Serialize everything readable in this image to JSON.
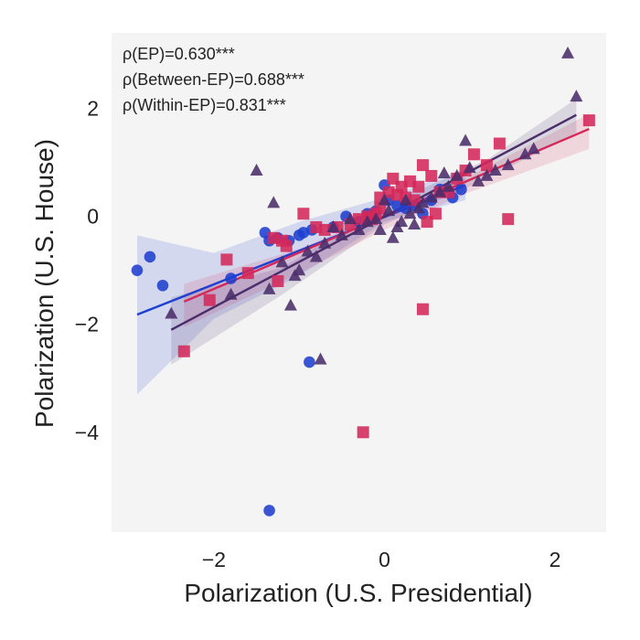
{
  "chart_data": {
    "type": "scatter",
    "xlabel": "Polarization (U.S. Presidential)",
    "ylabel": "Polarization (U.S. House)",
    "xlim": [
      -3.2,
      2.6
    ],
    "ylim": [
      -5.85,
      3.4
    ],
    "xticks": [
      -2,
      0,
      2
    ],
    "yticks": [
      -4,
      -2,
      0,
      2
    ],
    "xtick_labels": [
      "−2",
      "0",
      "2"
    ],
    "ytick_labels": [
      "−4",
      "−2",
      "0",
      "2"
    ],
    "grid": false,
    "background": "#f4f4f4",
    "annotations": [
      "ρ(EP)=0.630***",
      "ρ(Between-EP)=0.688***",
      "ρ(Within-EP)=0.831***"
    ],
    "series": [
      {
        "marker": "circle",
        "color": "#1f3fcf",
        "points": [
          [
            -2.9,
            -1.0
          ],
          [
            -2.75,
            -0.75
          ],
          [
            -2.6,
            -1.28
          ],
          [
            -1.4,
            -0.3
          ],
          [
            -1.35,
            -0.45
          ],
          [
            -1.25,
            -0.4
          ],
          [
            -1.12,
            -0.45
          ],
          [
            -1.0,
            -0.35
          ],
          [
            -0.95,
            -0.3
          ],
          [
            -0.85,
            -0.25
          ],
          [
            -0.6,
            -0.2
          ],
          [
            -0.45,
            0.0
          ],
          [
            -0.3,
            -0.1
          ],
          [
            -0.2,
            0.05
          ],
          [
            -0.1,
            0.1
          ],
          [
            0.0,
            0.58
          ],
          [
            0.05,
            0.3
          ],
          [
            0.15,
            0.2
          ],
          [
            0.25,
            0.15
          ],
          [
            0.35,
            0.2
          ],
          [
            0.45,
            0.05
          ],
          [
            0.55,
            0.3
          ],
          [
            0.65,
            0.5
          ],
          [
            0.8,
            0.35
          ],
          [
            0.9,
            0.5
          ],
          [
            -1.8,
            -1.15
          ],
          [
            -0.88,
            -2.7
          ],
          [
            -1.35,
            -5.45
          ]
        ],
        "fit": [
          [
            -2.9,
            -1.82
          ],
          [
            0.95,
            0.58
          ]
        ],
        "band": {
          "x": [
            -2.9,
            -2.0,
            -1.0,
            0.0,
            0.95
          ],
          "upper": [
            -0.35,
            -0.68,
            -0.1,
            0.35,
            0.88
          ],
          "lower": [
            -3.3,
            -1.9,
            -1.1,
            -0.1,
            0.3
          ]
        }
      },
      {
        "marker": "square",
        "color": "#d4285a",
        "points": [
          [
            2.4,
            1.78
          ],
          [
            1.45,
            -0.05
          ],
          [
            1.35,
            1.35
          ],
          [
            1.2,
            0.95
          ],
          [
            1.05,
            1.15
          ],
          [
            0.95,
            0.85
          ],
          [
            0.85,
            0.7
          ],
          [
            0.75,
            0.45
          ],
          [
            0.65,
            0.45
          ],
          [
            0.6,
            0.05
          ],
          [
            0.55,
            0.75
          ],
          [
            0.45,
            0.95
          ],
          [
            0.4,
            0.55
          ],
          [
            0.3,
            0.65
          ],
          [
            0.25,
            0.35
          ],
          [
            0.2,
            0.55
          ],
          [
            0.15,
            0.4
          ],
          [
            0.1,
            0.7
          ],
          [
            0.05,
            0.45
          ],
          [
            -0.05,
            0.35
          ],
          [
            -0.1,
            0.05
          ],
          [
            -0.15,
            -0.05
          ],
          [
            -0.2,
            0.0
          ],
          [
            -0.3,
            -0.05
          ],
          [
            -0.4,
            -0.15
          ],
          [
            -0.55,
            -0.2
          ],
          [
            -0.7,
            -0.25
          ],
          [
            -0.8,
            -0.2
          ],
          [
            -0.95,
            0.05
          ],
          [
            -1.2,
            -0.45
          ],
          [
            -1.15,
            -0.55
          ],
          [
            -1.3,
            -0.4
          ],
          [
            -1.25,
            -1.2
          ],
          [
            -1.6,
            -1.05
          ],
          [
            -1.85,
            -0.8
          ],
          [
            -2.05,
            -1.55
          ],
          [
            -2.35,
            -2.5
          ],
          [
            0.45,
            -1.72
          ],
          [
            0.5,
            -0.1
          ],
          [
            -0.25,
            -4.0
          ],
          [
            0.35,
            0.3
          ],
          [
            -0.05,
            0.15
          ]
        ],
        "fit": [
          [
            -2.35,
            -1.58
          ],
          [
            2.4,
            1.62
          ]
        ],
        "band": {
          "x": [
            -2.35,
            -1.0,
            0.0,
            1.0,
            2.4
          ],
          "upper": [
            -1.25,
            -0.6,
            0.05,
            0.75,
            1.9
          ],
          "lower": [
            -2.05,
            -1.05,
            -0.25,
            0.45,
            1.25
          ]
        }
      },
      {
        "marker": "triangle",
        "color": "#4a2d6a",
        "points": [
          [
            2.15,
            3.02
          ],
          [
            2.25,
            2.22
          ],
          [
            1.75,
            1.25
          ],
          [
            1.65,
            1.15
          ],
          [
            1.45,
            0.95
          ],
          [
            1.3,
            0.85
          ],
          [
            1.2,
            0.75
          ],
          [
            1.1,
            0.65
          ],
          [
            1.0,
            0.9
          ],
          [
            0.95,
            1.4
          ],
          [
            0.85,
            0.75
          ],
          [
            0.75,
            0.55
          ],
          [
            0.7,
            0.8
          ],
          [
            0.65,
            0.45
          ],
          [
            0.55,
            0.35
          ],
          [
            0.45,
            0.25
          ],
          [
            0.4,
            0.15
          ],
          [
            0.35,
            -0.15
          ],
          [
            0.3,
            0.05
          ],
          [
            0.25,
            0.3
          ],
          [
            0.2,
            -0.1
          ],
          [
            0.15,
            -0.2
          ],
          [
            0.1,
            -0.4
          ],
          [
            0.05,
            0.1
          ],
          [
            0.0,
            0.3
          ],
          [
            -0.05,
            -0.25
          ],
          [
            -0.1,
            -0.05
          ],
          [
            -0.2,
            -0.1
          ],
          [
            -0.3,
            -0.25
          ],
          [
            -0.4,
            -0.05
          ],
          [
            -0.5,
            -0.35
          ],
          [
            -0.6,
            -0.2
          ],
          [
            -0.7,
            -0.5
          ],
          [
            -0.8,
            -0.75
          ],
          [
            -0.9,
            -0.65
          ],
          [
            -1.0,
            -1.0
          ],
          [
            -1.05,
            -1.1
          ],
          [
            -1.1,
            -1.65
          ],
          [
            -1.2,
            -0.85
          ],
          [
            -1.35,
            -1.35
          ],
          [
            -1.3,
            0.25
          ],
          [
            -1.5,
            0.85
          ],
          [
            -1.8,
            -1.45
          ],
          [
            -2.5,
            -1.8
          ],
          [
            -0.75,
            -2.65
          ]
        ],
        "fit": [
          [
            -2.5,
            -2.1
          ],
          [
            2.25,
            1.88
          ]
        ],
        "band": {
          "x": [
            -2.5,
            -1.2,
            0.0,
            1.2,
            2.25
          ],
          "upper": [
            -1.5,
            -0.95,
            0.2,
            1.05,
            2.18
          ],
          "lower": [
            -2.75,
            -1.45,
            -0.15,
            0.7,
            1.55
          ]
        }
      }
    ]
  }
}
